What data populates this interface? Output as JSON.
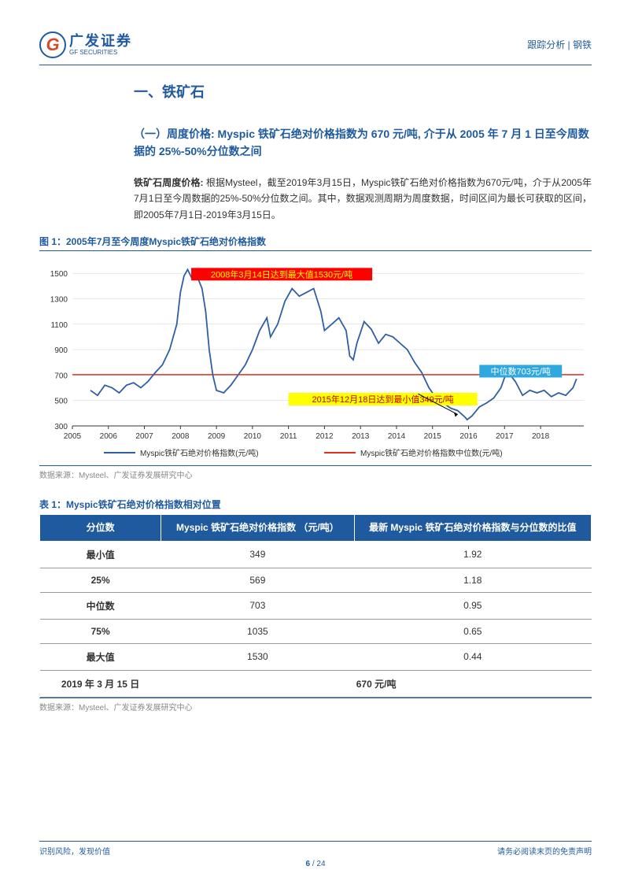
{
  "header": {
    "logo_letter": "G",
    "logo_cn": "广发证券",
    "logo_en": "GF SECURITIES",
    "right_text": "跟踪分析 | 钢铁"
  },
  "section1": {
    "title": "一、铁矿石",
    "sub_title": "（一）周度价格: Myspic 铁矿石绝对价格指数为 670 元/吨, 介于从 2005 年 7 月 1 日至今周数据的 25%-50%分位数之间",
    "body_lead": "铁矿石周度价格:",
    "body_text": " 根据Mysteel，截至2019年3月15日，Myspic铁矿石绝对价格指数为670元/吨，介于从2005年7月1日至今周数据的25%-50%分位数之间。其中，数据观测周期为周度数据，时间区间为最长可获取的区间，即2005年7月1日-2019年3月15日。"
  },
  "figure1": {
    "title": "图 1：2005年7月至今周度Myspic铁矿石绝对价格指数",
    "type": "line",
    "source": "数据来源：Mysteel、广发证券发展研究中心",
    "x_ticks": [
      "2005",
      "2006",
      "2007",
      "2008",
      "2009",
      "2010",
      "2011",
      "2012",
      "2013",
      "2014",
      "2015",
      "2016",
      "2017",
      "2018"
    ],
    "y_ticks": [
      300,
      500,
      700,
      900,
      1100,
      1300,
      1500
    ],
    "ylim": [
      300,
      1600
    ],
    "line_color": "#2f5fa3",
    "median_color": "#e03020",
    "median_value": 703,
    "background_color": "#ffffff",
    "grid_color": "#d0d0d0",
    "series": [
      [
        2005.5,
        580
      ],
      [
        2005.7,
        540
      ],
      [
        2005.9,
        620
      ],
      [
        2006.1,
        600
      ],
      [
        2006.3,
        560
      ],
      [
        2006.5,
        620
      ],
      [
        2006.7,
        640
      ],
      [
        2006.9,
        600
      ],
      [
        2007.1,
        650
      ],
      [
        2007.3,
        720
      ],
      [
        2007.5,
        780
      ],
      [
        2007.7,
        900
      ],
      [
        2007.9,
        1100
      ],
      [
        2008.0,
        1350
      ],
      [
        2008.1,
        1480
      ],
      [
        2008.2,
        1530
      ],
      [
        2008.3,
        1470
      ],
      [
        2008.4,
        1500
      ],
      [
        2008.5,
        1450
      ],
      [
        2008.6,
        1380
      ],
      [
        2008.7,
        1200
      ],
      [
        2008.8,
        900
      ],
      [
        2008.9,
        700
      ],
      [
        2009.0,
        580
      ],
      [
        2009.2,
        560
      ],
      [
        2009.4,
        620
      ],
      [
        2009.6,
        700
      ],
      [
        2009.8,
        780
      ],
      [
        2010.0,
        900
      ],
      [
        2010.2,
        1050
      ],
      [
        2010.4,
        1150
      ],
      [
        2010.5,
        1000
      ],
      [
        2010.7,
        1100
      ],
      [
        2010.9,
        1280
      ],
      [
        2011.1,
        1380
      ],
      [
        2011.3,
        1320
      ],
      [
        2011.5,
        1350
      ],
      [
        2011.7,
        1380
      ],
      [
        2011.9,
        1200
      ],
      [
        2012.0,
        1050
      ],
      [
        2012.2,
        1100
      ],
      [
        2012.4,
        1150
      ],
      [
        2012.6,
        1050
      ],
      [
        2012.7,
        850
      ],
      [
        2012.8,
        820
      ],
      [
        2012.9,
        950
      ],
      [
        2013.1,
        1120
      ],
      [
        2013.3,
        1060
      ],
      [
        2013.5,
        950
      ],
      [
        2013.7,
        1020
      ],
      [
        2013.9,
        1000
      ],
      [
        2014.1,
        950
      ],
      [
        2014.3,
        900
      ],
      [
        2014.5,
        800
      ],
      [
        2014.7,
        720
      ],
      [
        2014.9,
        600
      ],
      [
        2015.1,
        520
      ],
      [
        2015.3,
        480
      ],
      [
        2015.5,
        440
      ],
      [
        2015.7,
        420
      ],
      [
        2015.9,
        370
      ],
      [
        2015.96,
        349
      ],
      [
        2016.1,
        380
      ],
      [
        2016.3,
        450
      ],
      [
        2016.5,
        480
      ],
      [
        2016.7,
        520
      ],
      [
        2016.9,
        600
      ],
      [
        2017.0,
        680
      ],
      [
        2017.1,
        720
      ],
      [
        2017.3,
        650
      ],
      [
        2017.5,
        540
      ],
      [
        2017.7,
        580
      ],
      [
        2017.9,
        560
      ],
      [
        2018.1,
        580
      ],
      [
        2018.3,
        530
      ],
      [
        2018.5,
        560
      ],
      [
        2018.7,
        540
      ],
      [
        2018.9,
        600
      ],
      [
        2019.0,
        670
      ]
    ],
    "annotations": {
      "max": {
        "text": "2008年3月14日达到最大值1530元/吨",
        "bg": "#ff0000",
        "fg": "#ffff00"
      },
      "min": {
        "text": "2015年12月18日达到最小值349元/吨",
        "bg": "#ffff00",
        "fg": "#c00000"
      },
      "median": {
        "text": "中位数703元/吨",
        "bg": "#2fa8e0",
        "fg": "#ffffff"
      }
    },
    "legend": {
      "s1": "Myspic铁矿石绝对价格指数(元/吨)",
      "s2": "Myspic铁矿石绝对价格指数中位数(元/吨)"
    }
  },
  "table1": {
    "title": "表 1：Myspic铁矿石绝对价格指数相对位置",
    "source": "数据来源：Mysteel、广发证券发展研究中心",
    "header_bg": "#1f5a9e",
    "header_fg": "#ffffff",
    "columns": [
      "分位数",
      "Myspic 铁矿石绝对价格指数\n（元/吨）",
      "最新 Myspic 铁矿石绝对价格指数与分位数的比值"
    ],
    "rows": [
      [
        "最小值",
        "349",
        "1.92"
      ],
      [
        "25%",
        "569",
        "1.18"
      ],
      [
        "中位数",
        "703",
        "0.95"
      ],
      [
        "75%",
        "1035",
        "0.65"
      ],
      [
        "最大值",
        "1530",
        "0.44"
      ]
    ],
    "last_row": [
      "2019 年 3 月 15 日",
      "670 元/吨"
    ]
  },
  "footer": {
    "left": "识别风险，发现价值",
    "right": "请务必阅读末页的免责声明",
    "page_current": "6",
    "page_total": "24",
    "page_sep": " / "
  }
}
